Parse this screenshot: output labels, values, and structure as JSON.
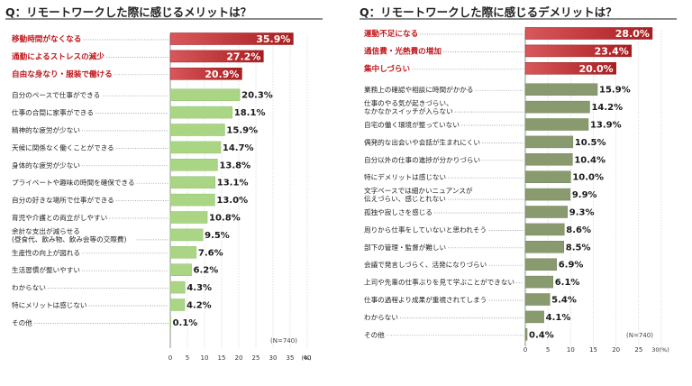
{
  "colors": {
    "highlight_dark": "#a91d20",
    "highlight_light": "#d8585b",
    "merit_bar": "#a9d585",
    "merit_bar_edge": "#8fc06a",
    "demerit_bar": "#889a6e",
    "demerit_bar_edge": "#718458",
    "grid": "#cfcfcf",
    "dots": "#888888"
  },
  "chart_data": [
    {
      "type": "bar",
      "orientation": "horizontal",
      "title": "Q：リモートワークした際に感じるメリットは？",
      "note": "(N=740)",
      "unit": "(%)",
      "xlim": [
        0,
        40
      ],
      "xticks": [
        "0",
        "5",
        "10",
        "15",
        "20",
        "25",
        "30",
        "35",
        "40"
      ],
      "highlight_count": 3,
      "categories": [
        [
          "移動時間がなくなる"
        ],
        [
          "通勤によるストレスの減少"
        ],
        [
          "自由な身なり・服装で働ける"
        ],
        [
          "自分のペースで仕事ができる"
        ],
        [
          "仕事の合間に家事ができる"
        ],
        [
          "精神的な疲労が少ない"
        ],
        [
          "天候に関係なく働くことができる"
        ],
        [
          "身体的な疲労が少ない"
        ],
        [
          "プライベートや趣味の時間を確保できる"
        ],
        [
          "自分の好きな場所で仕事ができる"
        ],
        [
          "育児や介護との両立がしやすい"
        ],
        [
          "余計な支出が減らせる",
          "(昼食代、飲み物、飲み会等の交際費)"
        ],
        [
          "生産性の向上が図れる"
        ],
        [
          "生活習慣が整いやすい"
        ],
        [
          "わからない"
        ],
        [
          "特にメリットは感じない"
        ],
        [
          "その他"
        ]
      ],
      "values": [
        35.9,
        27.2,
        20.9,
        20.3,
        18.1,
        15.9,
        14.7,
        13.8,
        13.1,
        13.0,
        10.8,
        9.5,
        7.6,
        6.2,
        4.3,
        4.2,
        0.1
      ],
      "labels": [
        "35.9%",
        "27.2%",
        "20.9%",
        "20.3%",
        "18.1%",
        "15.9%",
        "14.7%",
        "13.8%",
        "13.1%",
        "13.0%",
        "10.8%",
        "9.5%",
        "7.6%",
        "6.2%",
        "4.3%",
        "4.2%",
        "0.1%"
      ]
    },
    {
      "type": "bar",
      "orientation": "horizontal",
      "title": "Q：リモートワークした際に感じるデメリットは？",
      "note": "(N=740)",
      "unit": "30(%)",
      "xlim": [
        0,
        30
      ],
      "xticks": [
        "0",
        "5",
        "10",
        "15",
        "20",
        "25"
      ],
      "highlight_count": 3,
      "categories": [
        [
          "運動不足になる"
        ],
        [
          "通信費・光熱費の増加"
        ],
        [
          "集中しづらい"
        ],
        [
          "業務上の確認や相談に時間がかかる"
        ],
        [
          "仕事のやる気が起きづらい、",
          "なかなかスイッチが入らない"
        ],
        [
          "自宅の働く環境が整っていない"
        ],
        [
          "偶発的な出会いや会話が生まれにくい"
        ],
        [
          "自分以外の仕事の進捗が分かりづらい"
        ],
        [
          "特にデメリットは感じない"
        ],
        [
          "文字ベースでは細かいニュアンスが",
          "伝えづらい、感じとれない"
        ],
        [
          "孤独や寂しさを感じる"
        ],
        [
          "周りから仕事をしていないと思われそう"
        ],
        [
          "部下の管理・監督が難しい"
        ],
        [
          "会議で発言しづらく、活発になりづらい"
        ],
        [
          "上司や先輩の仕事ぶりを見て学ぶことができない"
        ],
        [
          "仕事の過程より成果が重視されてしまう"
        ],
        [
          "わからない"
        ],
        [
          "その他"
        ]
      ],
      "values": [
        28.0,
        23.4,
        20.0,
        15.9,
        14.2,
        13.9,
        10.5,
        10.4,
        10.0,
        9.9,
        9.3,
        8.6,
        8.5,
        6.9,
        6.1,
        5.4,
        4.1,
        0.4
      ],
      "labels": [
        "28.0%",
        "23.4%",
        "20.0%",
        "15.9%",
        "14.2%",
        "13.9%",
        "10.5%",
        "10.4%",
        "10.0%",
        "9.9%",
        "9.3%",
        "8.6%",
        "8.5%",
        "6.9%",
        "6.1%",
        "5.4%",
        "4.1%",
        "0.4%"
      ]
    }
  ]
}
